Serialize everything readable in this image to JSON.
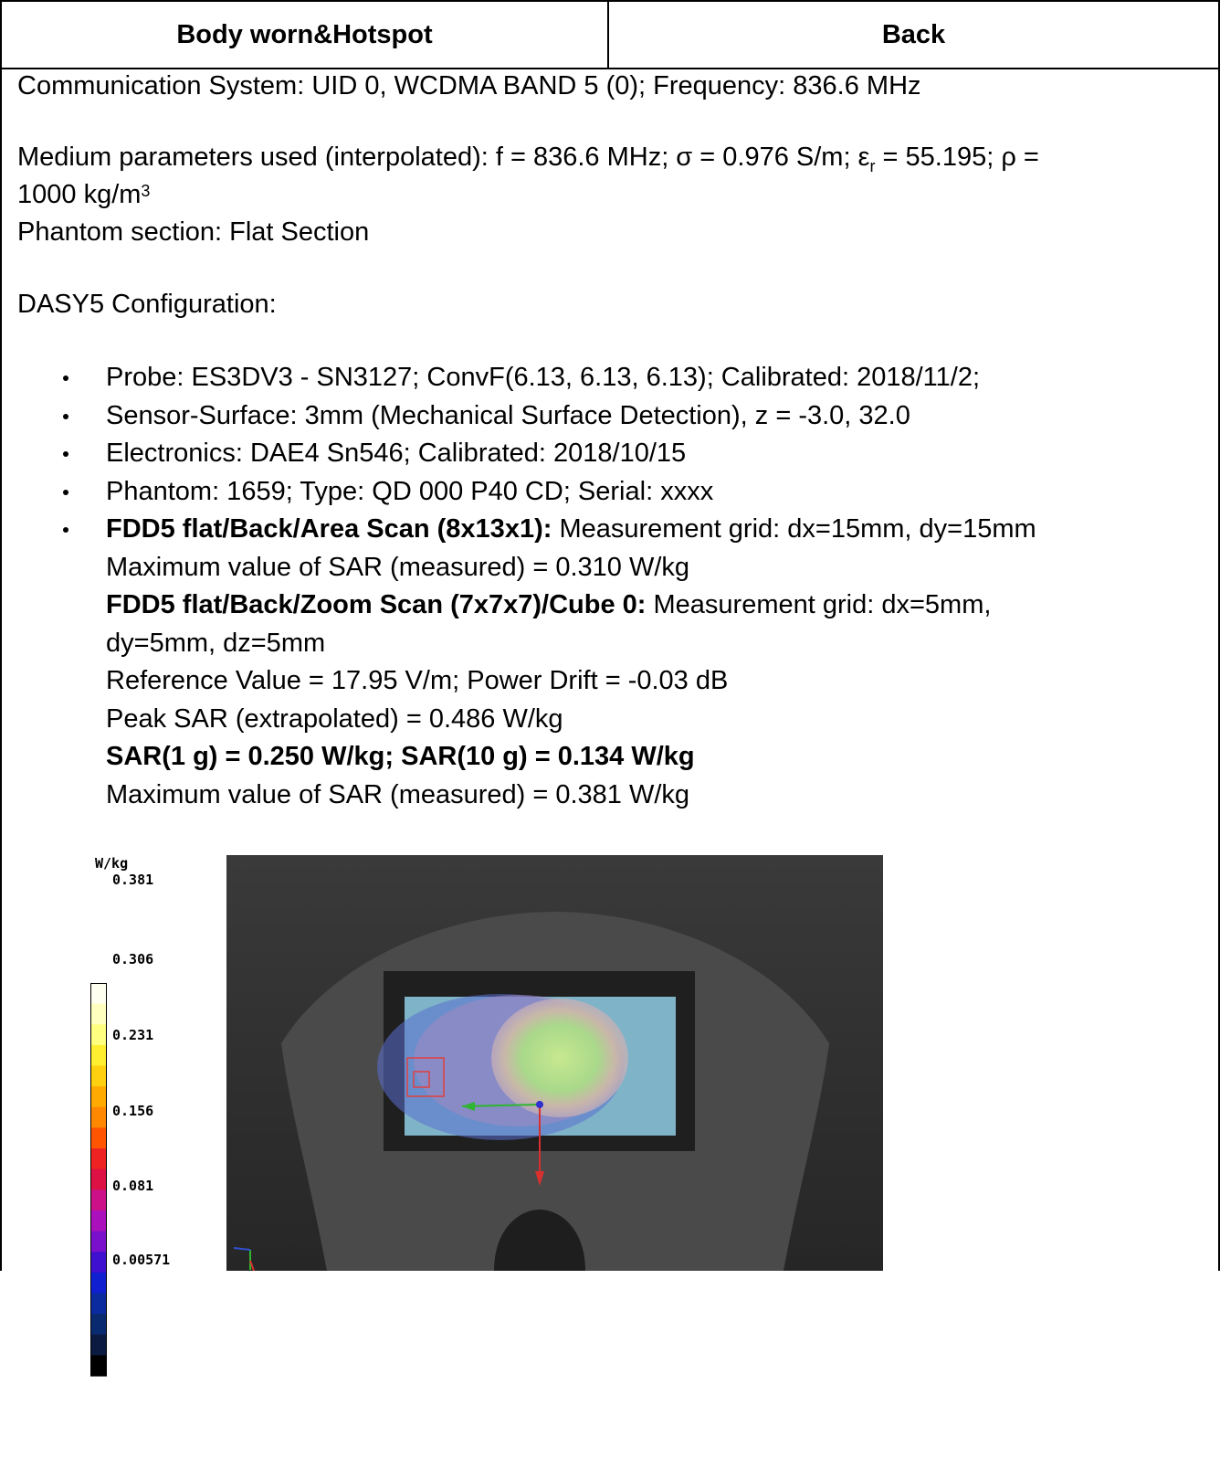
{
  "header": {
    "left": "Body worn&Hotspot",
    "right": "Back"
  },
  "comm_system": "Communication System: UID 0, WCDMA BAND 5 (0); Frequency: 836.6 MHz",
  "medium": {
    "line1_prefix": "Medium parameters used (interpolated): f = 836.6 MHz; σ = 0.976 S/m; ε",
    "line1_sub": "r",
    "line1_suffix": " = 55.195; ρ =",
    "line2_prefix": "1000 kg/m",
    "line2_sup": "3"
  },
  "phantom_section": "Phantom section: Flat Section",
  "dasy_config": "DASY5 Configuration:",
  "config_items": [
    "Probe: ES3DV3 - SN3127; ConvF(6.13, 6.13, 6.13); Calibrated: 2018/11/2;",
    "Sensor-Surface: 3mm (Mechanical Surface Detection), z = -3.0, 32.0",
    "Electronics: DAE4 Sn546; Calibrated: 2018/10/15",
    "Phantom: 1659; Type: QD 000 P40 CD; Serial: xxxx"
  ],
  "scan": {
    "area_title": "FDD5 flat/Back/Area Scan (8x13x1):",
    "area_grid": " Measurement grid: dx=15mm, dy=15mm",
    "area_max": "Maximum value of SAR (measured) = 0.310 W/kg",
    "zoom_title": "FDD5 flat/Back/Zoom Scan (7x7x7)/Cube 0:",
    "zoom_grid": " Measurement grid: dx=5mm,",
    "zoom_grid2": "dy=5mm, dz=5mm",
    "reference": "Reference Value = 17.95 V/m; Power Drift = -0.03 dB",
    "peak": "Peak SAR (extrapolated) = 0.486 W/kg",
    "sar_result": "SAR(1 g) = 0.250 W/kg; SAR(10 g) = 0.134 W/kg",
    "zoom_max": "Maximum value of SAR (measured) = 0.381 W/kg"
  },
  "legend": {
    "unit": "W/kg",
    "labels": [
      "0.381",
      "0.306",
      "0.231",
      "0.156",
      "0.081",
      "0.00571"
    ]
  },
  "colors": {
    "scale": [
      "#fffff0",
      "#ffffc0",
      "#ffff80",
      "#ffef30",
      "#ffd010",
      "#ffaa00",
      "#ff8800",
      "#ff5500",
      "#ee2222",
      "#dd1144",
      "#cc1188",
      "#aa10bb",
      "#7a10cc",
      "#4010d0",
      "#1020d0",
      "#0a2aa0",
      "#0a2a70",
      "#0a1a40",
      "#000000"
    ],
    "background": "#2f2f2f"
  }
}
